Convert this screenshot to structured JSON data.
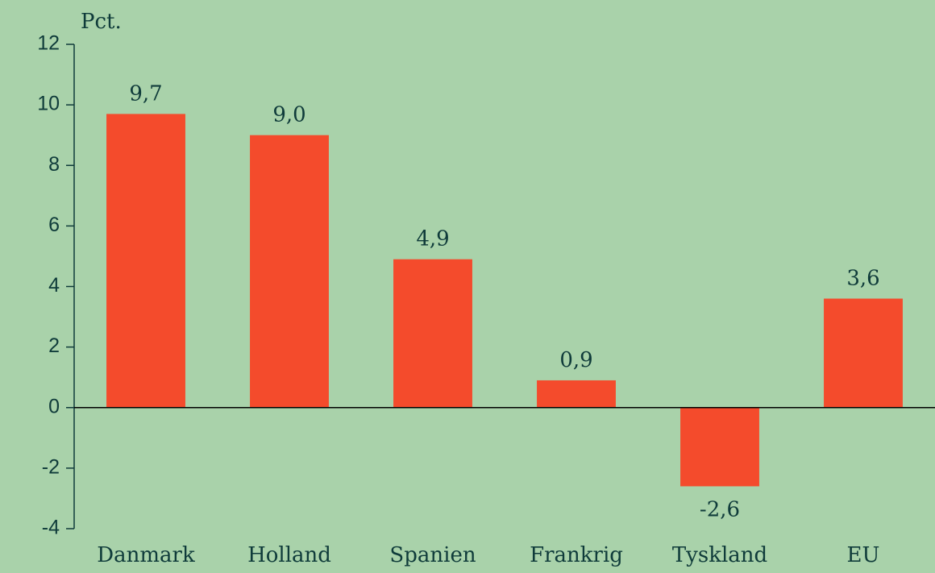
{
  "chart_data": {
    "type": "bar",
    "y_label": "Pct.",
    "categories": [
      "Danmark",
      "Holland",
      "Spanien",
      "Frankrig",
      "Tyskland",
      "EU"
    ],
    "values": [
      9.7,
      9.0,
      4.9,
      0.9,
      -2.6,
      3.6
    ],
    "value_labels": [
      "9,7",
      "9,0",
      "4,9",
      "0,9",
      "-2,6",
      "3,6"
    ],
    "color": "#f44b2c",
    "ylim": [
      -4,
      12
    ],
    "yticks": [
      -4,
      -2,
      0,
      2,
      4,
      6,
      8,
      10,
      12
    ],
    "grid": false
  }
}
